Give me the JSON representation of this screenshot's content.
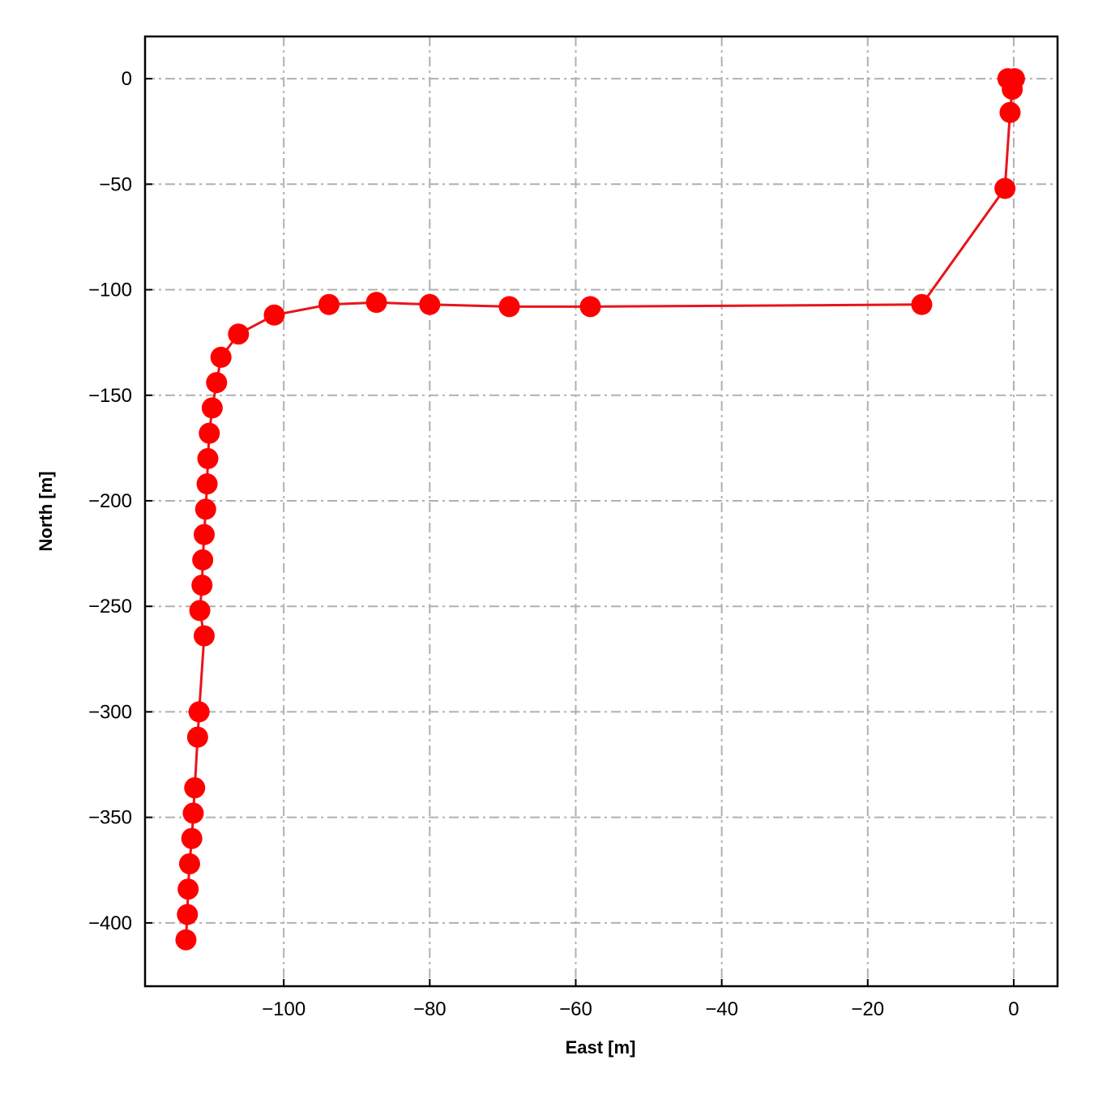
{
  "chart_data": {
    "type": "line",
    "title": "",
    "xlabel": "East [m]",
    "ylabel": "North [m]",
    "xlim": [
      -119,
      6
    ],
    "ylim": [
      -430,
      20
    ],
    "xticks": [
      -100,
      -80,
      -60,
      -40,
      -20,
      0
    ],
    "yticks": [
      0,
      -50,
      -100,
      -150,
      -200,
      -250,
      -300,
      -350,
      -400
    ],
    "xtick_labels": [
      "−100",
      "−80",
      "−60",
      "−40",
      "−20",
      "0"
    ],
    "ytick_labels": [
      "0",
      "−50",
      "−100",
      "−150",
      "−200",
      "−250",
      "−300",
      "−350",
      "−400"
    ],
    "grid": true,
    "grid_style": "dash-dot",
    "grid_color": "#b0b0b0",
    "series": [
      {
        "color": "#ff0000",
        "line_color": "#e8141a",
        "marker": "circle",
        "points": [
          [
            0.1,
            0
          ],
          [
            -0.8,
            0
          ],
          [
            -0.2,
            -5
          ],
          [
            -0.5,
            -16
          ],
          [
            -1.2,
            -52
          ],
          [
            -12.6,
            -107
          ],
          [
            -58.0,
            -108
          ],
          [
            -69.1,
            -108
          ],
          [
            -80.0,
            -107
          ],
          [
            -87.3,
            -106
          ],
          [
            -93.8,
            -107
          ],
          [
            -101.3,
            -112
          ],
          [
            -106.2,
            -121
          ],
          [
            -108.6,
            -132
          ],
          [
            -109.2,
            -144
          ],
          [
            -109.8,
            -156
          ],
          [
            -110.2,
            -168
          ],
          [
            -110.4,
            -180
          ],
          [
            -110.5,
            -192
          ],
          [
            -110.7,
            -204
          ],
          [
            -110.9,
            -216
          ],
          [
            -111.1,
            -228
          ],
          [
            -111.2,
            -240
          ],
          [
            -111.5,
            -252
          ],
          [
            -110.9,
            -264
          ],
          [
            -111.6,
            -300
          ],
          [
            -111.8,
            -312
          ],
          [
            -112.2,
            -336
          ],
          [
            -112.4,
            -348
          ],
          [
            -112.6,
            -360
          ],
          [
            -112.9,
            -372
          ],
          [
            -113.1,
            -384
          ],
          [
            -113.2,
            -396
          ],
          [
            -113.4,
            -408
          ]
        ]
      }
    ]
  }
}
